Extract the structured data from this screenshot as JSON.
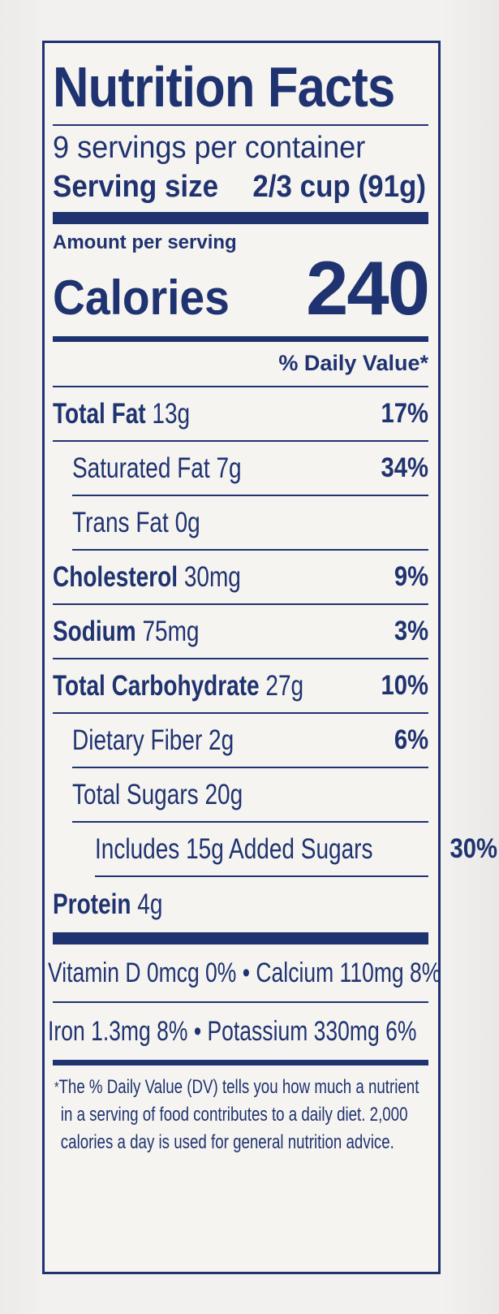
{
  "title": "Nutrition Facts",
  "servings_per_container": "9 servings per container",
  "serving_size_label": "Serving size",
  "serving_size_value": "2/3 cup (91g)",
  "amount_per_serving": "Amount per serving",
  "calories_label": "Calories",
  "calories_value": "240",
  "daily_value_header": "% Daily Value*",
  "nutrients": [
    {
      "name": "Total Fat",
      "amount": "13g",
      "dv": "17%"
    },
    {
      "name": "Saturated Fat",
      "amount": "7g",
      "dv": "34%"
    },
    {
      "name": "Trans Fat",
      "amount": "0g",
      "dv": ""
    },
    {
      "name": "Cholesterol",
      "amount": "30mg",
      "dv": "9%"
    },
    {
      "name": "Sodium",
      "amount": "75mg",
      "dv": "3%"
    },
    {
      "name": "Total Carbohydrate",
      "amount": "27g",
      "dv": "10%"
    },
    {
      "name": "Dietary Fiber",
      "amount": "2g",
      "dv": "6%"
    },
    {
      "name": "Total Sugars",
      "amount": "20g",
      "dv": ""
    },
    {
      "name": "Includes 15g Added Sugars",
      "amount": "",
      "dv": "30%"
    },
    {
      "name": "Protein",
      "amount": "4g",
      "dv": ""
    }
  ],
  "vitamins_line1": "Vitamin D 0mcg 0% • Calcium 110mg 8%",
  "vitamins_line2": "Iron 1.3mg 8%  •  Potassium 330mg 6%",
  "footnote_star": "*",
  "footnote_line1": "The % Daily Value (DV) tells you how much a nutrient",
  "footnote_line2": "in a serving of food contributes to a daily diet. 2,000",
  "footnote_line3": "calories a day is used for general nutrition advice."
}
